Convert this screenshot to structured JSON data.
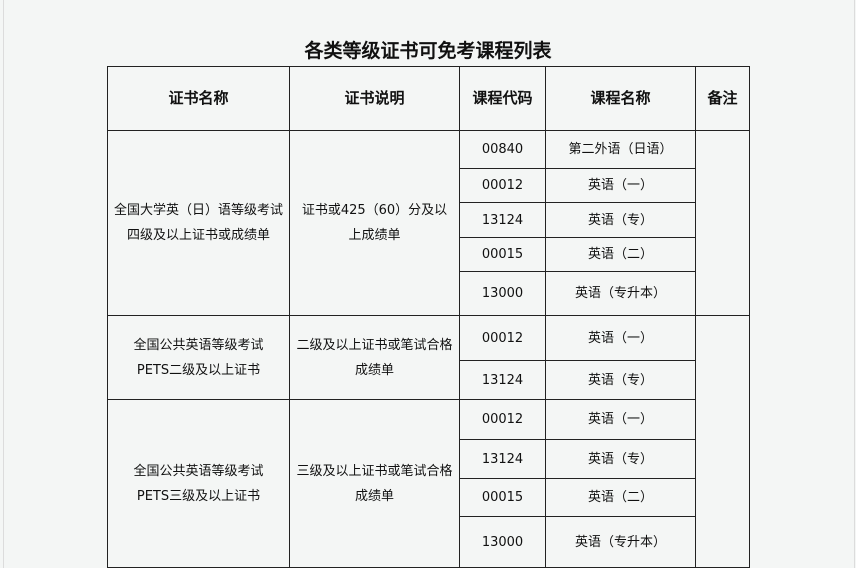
{
  "title": "各类等级证书可免考课程列表",
  "headers": [
    "证书名称",
    "证书说明",
    "课程代码",
    "课程名称",
    "备注"
  ],
  "groups": [
    {
      "cert_lines": [
        "全国大学英（日）语等级考试",
        "四级及以上证书或成绩单"
      ],
      "desc": "证书或425（60）分及以上成绩单",
      "courses": [
        [
          "00840",
          "第二外语（日语）"
        ],
        [
          "00012",
          "英语（一）"
        ],
        [
          "13124",
          "英语（专）"
        ],
        [
          "00015",
          "英语（二）"
        ],
        [
          "13000",
          "英语（专升本）"
        ]
      ]
    },
    {
      "cert_lines": [
        "全国公共英语等级考试",
        "PETS二级及以上证书"
      ],
      "desc": "二级及以上证书或笔试合格成绩单",
      "courses": [
        [
          "00012",
          "英语（一）"
        ],
        [
          "13124",
          "英语（专）"
        ]
      ]
    },
    {
      "cert_lines": [
        "全国公共英语等级考试",
        "PETS三级及以上证书"
      ],
      "desc": "三级及以上证书或笔试合格成绩单",
      "courses": [
        [
          "00012",
          "英语（一）"
        ],
        [
          "13124",
          "英语（专）"
        ],
        [
          "00015",
          "英语（二）"
        ],
        [
          "13000",
          "英语（专升本）"
        ]
      ]
    }
  ]
}
